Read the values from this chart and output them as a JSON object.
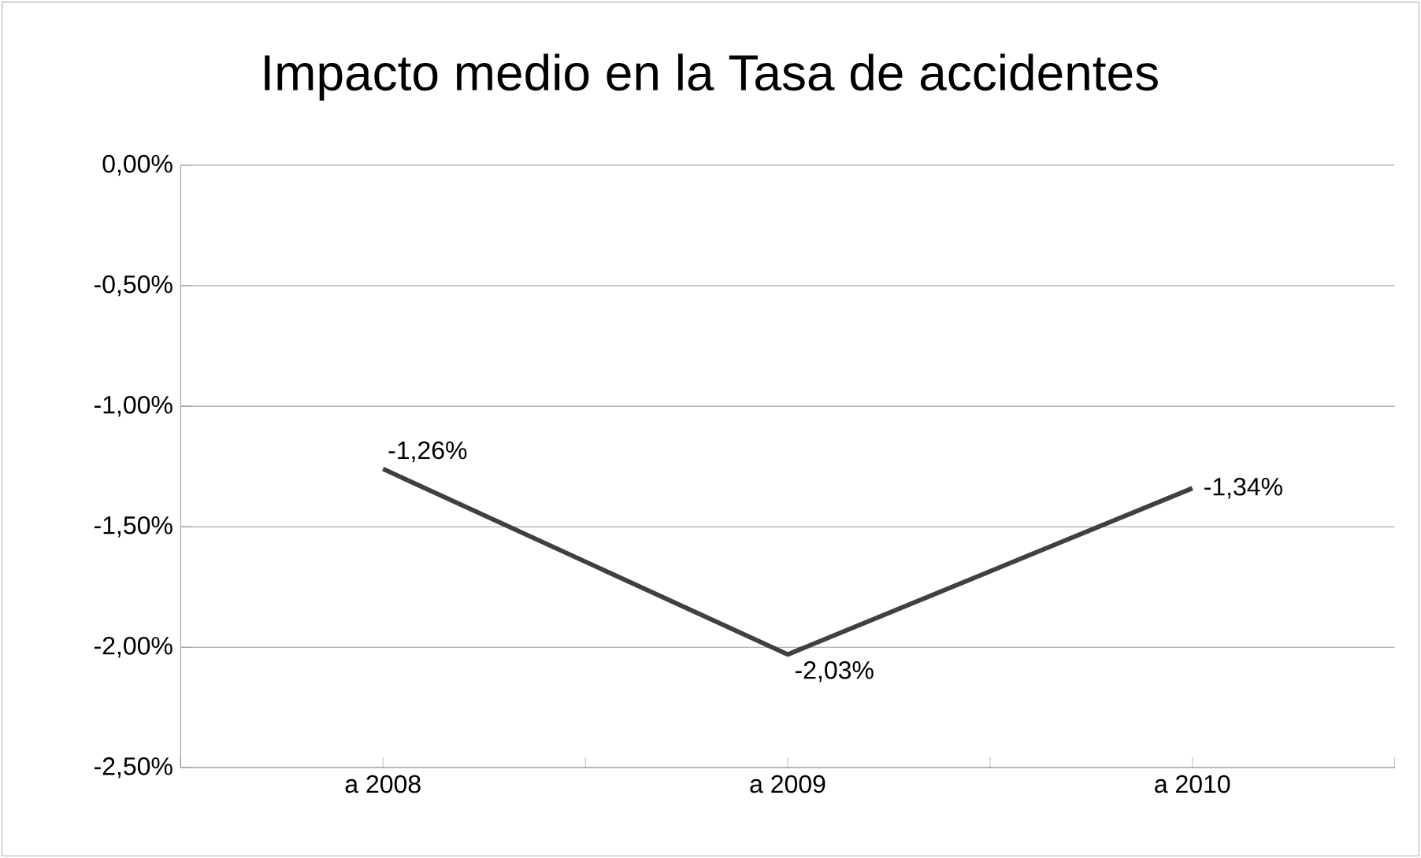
{
  "chart_data": {
    "type": "line",
    "title": "Impacto medio en la Tasa de accidentes",
    "categories": [
      "a 2008",
      "a 2009",
      "a 2010"
    ],
    "values": [
      -1.26,
      -2.03,
      -1.34
    ],
    "value_labels": [
      "-1,26%",
      "-2,03%",
      "-1,34%"
    ],
    "color": "#404040",
    "ylim": [
      -2.5,
      0
    ],
    "yticks": [
      {
        "value": 0,
        "label": "0,00%"
      },
      {
        "value": -0.5,
        "label": "-0,50%"
      },
      {
        "value": -1,
        "label": "-1,00%"
      },
      {
        "value": -1.5,
        "label": "-1,50%"
      },
      {
        "value": -2,
        "label": "-2,00%"
      },
      {
        "value": -2.5,
        "label": "-2,50%"
      }
    ],
    "grid": "y",
    "marker": "none",
    "line_style": "solid"
  }
}
